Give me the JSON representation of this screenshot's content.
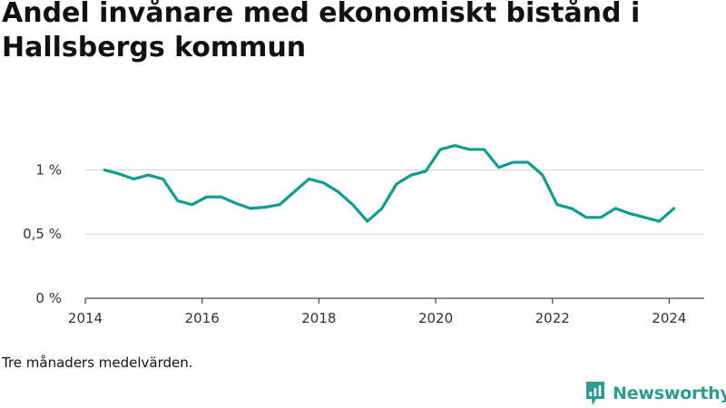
{
  "title": "Andel invånare med ekonomiskt bistånd i Hallsbergs kommun",
  "note": "Tre månaders medelvärden.",
  "brand": {
    "name": "Newsworthy",
    "icon": "newsworthy-logo-icon",
    "color": "#2a9d8f"
  },
  "chart_data": {
    "type": "line",
    "title": "Andel invånare med ekonomiskt bistånd i Hallsbergs kommun",
    "xlabel": "",
    "ylabel": "",
    "xlim": [
      2014,
      2024.6
    ],
    "ylim": [
      0,
      1.3
    ],
    "grid": true,
    "legend": "none",
    "line_color": "#0f9d8f",
    "x_ticks": [
      2014,
      2016,
      2018,
      2020,
      2022,
      2024
    ],
    "x_tick_labels": [
      "2014",
      "2016",
      "2018",
      "2020",
      "2022",
      "2024"
    ],
    "y_ticks": [
      0,
      0.5,
      1
    ],
    "y_tick_labels": [
      "0 %",
      "0,5 %",
      "1 %"
    ],
    "series": [
      {
        "x": [
          2014.33,
          2014.58,
          2014.83,
          2015.08,
          2015.33,
          2015.58,
          2015.83,
          2016.08,
          2016.33,
          2016.58,
          2016.83,
          2017.08,
          2017.33,
          2017.58,
          2017.83,
          2018.08,
          2018.33,
          2018.58,
          2018.83,
          2019.08,
          2019.33,
          2019.58,
          2019.83,
          2020.08,
          2020.33,
          2020.58,
          2020.83,
          2021.08,
          2021.33,
          2021.58,
          2021.83,
          2022.08,
          2022.33,
          2022.58,
          2022.83,
          2023.08,
          2023.33,
          2023.58,
          2023.83,
          2024.08
        ],
        "values": [
          1.0,
          0.97,
          0.93,
          0.96,
          0.93,
          0.76,
          0.73,
          0.79,
          0.79,
          0.74,
          0.7,
          0.71,
          0.73,
          0.83,
          0.93,
          0.9,
          0.83,
          0.73,
          0.6,
          0.7,
          0.89,
          0.96,
          0.99,
          1.16,
          1.19,
          1.16,
          1.16,
          1.02,
          1.06,
          1.06,
          0.96,
          0.73,
          0.7,
          0.63,
          0.63,
          0.7,
          0.66,
          0.63,
          0.6,
          0.7
        ]
      }
    ]
  }
}
